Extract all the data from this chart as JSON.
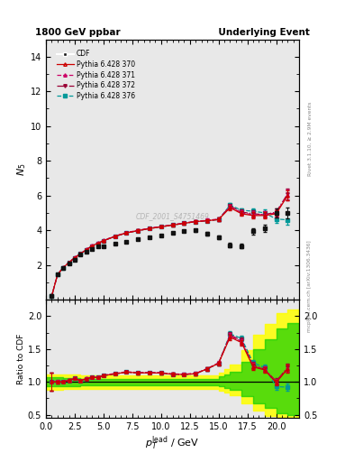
{
  "title_left": "1800 GeV ppbar",
  "title_right": "Underlying Event",
  "ylabel_main": "$N_5$",
  "ylabel_ratio": "Ratio to CDF",
  "xlabel": "$p_T^{\\rm lead}$ / GeV",
  "watermark": "CDF_2001_S4751469",
  "rivet_text": "Rivet 3.1.10, ≥ 2.9M events",
  "mcplots_text": "mcplots.cern.ch [arXiv:1306.3436]",
  "xlim": [
    0,
    22
  ],
  "ylim_main": [
    0,
    15
  ],
  "ylim_ratio": [
    0.45,
    2.25
  ],
  "yticks_main": [
    2,
    4,
    6,
    8,
    10,
    12,
    14
  ],
  "yticks_ratio": [
    0.5,
    1.0,
    1.5,
    2.0
  ],
  "cdf_x": [
    0.5,
    1.0,
    1.5,
    2.0,
    2.5,
    3.0,
    3.5,
    4.0,
    4.5,
    5.0,
    6.0,
    7.0,
    8.0,
    9.0,
    10.0,
    11.0,
    12.0,
    13.0,
    14.0,
    15.0,
    16.0,
    17.0,
    18.0,
    19.0,
    20.0,
    21.0
  ],
  "cdf_y": [
    0.22,
    1.45,
    1.85,
    2.1,
    2.3,
    2.6,
    2.75,
    2.9,
    3.05,
    3.1,
    3.25,
    3.35,
    3.5,
    3.6,
    3.7,
    3.85,
    3.95,
    4.0,
    3.8,
    3.6,
    3.15,
    3.1,
    3.95,
    4.1,
    5.0,
    5.0
  ],
  "cdf_yerr": [
    0.08,
    0.05,
    0.05,
    0.05,
    0.05,
    0.05,
    0.05,
    0.05,
    0.05,
    0.05,
    0.05,
    0.06,
    0.06,
    0.06,
    0.06,
    0.07,
    0.07,
    0.08,
    0.09,
    0.1,
    0.12,
    0.14,
    0.18,
    0.2,
    0.25,
    0.3
  ],
  "py370_x": [
    0.5,
    1.0,
    1.5,
    2.0,
    2.5,
    3.0,
    3.5,
    4.0,
    4.5,
    5.0,
    6.0,
    7.0,
    8.0,
    9.0,
    10.0,
    11.0,
    12.0,
    13.0,
    14.0,
    15.0,
    16.0,
    17.0,
    18.0,
    19.0,
    20.0,
    21.0
  ],
  "py370_y": [
    0.22,
    1.45,
    1.85,
    2.15,
    2.42,
    2.65,
    2.88,
    3.1,
    3.25,
    3.4,
    3.65,
    3.85,
    3.98,
    4.1,
    4.2,
    4.3,
    4.4,
    4.5,
    4.55,
    4.62,
    5.3,
    4.95,
    4.85,
    4.85,
    4.95,
    6.0
  ],
  "py370_yerr": [
    0.03,
    0.03,
    0.03,
    0.03,
    0.03,
    0.03,
    0.04,
    0.04,
    0.04,
    0.04,
    0.05,
    0.05,
    0.06,
    0.06,
    0.06,
    0.07,
    0.07,
    0.08,
    0.09,
    0.1,
    0.13,
    0.13,
    0.18,
    0.18,
    0.22,
    0.3
  ],
  "py371_x": [
    0.5,
    1.0,
    1.5,
    2.0,
    2.5,
    3.0,
    3.5,
    4.0,
    4.5,
    5.0,
    6.0,
    7.0,
    8.0,
    9.0,
    10.0,
    11.0,
    12.0,
    13.0,
    14.0,
    15.0,
    16.0,
    17.0,
    18.0,
    19.0,
    20.0,
    21.0
  ],
  "py371_y": [
    0.22,
    1.46,
    1.86,
    2.16,
    2.43,
    2.66,
    2.9,
    3.12,
    3.27,
    3.42,
    3.67,
    3.87,
    4.0,
    4.12,
    4.22,
    4.32,
    4.42,
    4.52,
    4.57,
    4.65,
    5.35,
    5.0,
    4.9,
    4.9,
    5.0,
    6.05
  ],
  "py371_yerr": [
    0.03,
    0.03,
    0.03,
    0.03,
    0.03,
    0.03,
    0.04,
    0.04,
    0.04,
    0.04,
    0.05,
    0.05,
    0.06,
    0.06,
    0.06,
    0.07,
    0.07,
    0.08,
    0.09,
    0.1,
    0.13,
    0.13,
    0.18,
    0.18,
    0.22,
    0.3
  ],
  "py372_x": [
    0.5,
    1.0,
    1.5,
    2.0,
    2.5,
    3.0,
    3.5,
    4.0,
    4.5,
    5.0,
    6.0,
    7.0,
    8.0,
    9.0,
    10.0,
    11.0,
    12.0,
    13.0,
    14.0,
    15.0,
    16.0,
    17.0,
    18.0,
    19.0,
    20.0,
    21.0
  ],
  "py372_y": [
    0.22,
    1.45,
    1.85,
    2.15,
    2.42,
    2.65,
    2.88,
    3.1,
    3.25,
    3.4,
    3.65,
    3.85,
    3.98,
    4.1,
    4.2,
    4.3,
    4.4,
    4.5,
    4.55,
    4.62,
    5.4,
    5.05,
    4.95,
    4.9,
    5.05,
    6.1
  ],
  "py372_yerr": [
    0.03,
    0.03,
    0.03,
    0.03,
    0.03,
    0.03,
    0.04,
    0.04,
    0.04,
    0.04,
    0.05,
    0.05,
    0.06,
    0.06,
    0.06,
    0.07,
    0.07,
    0.08,
    0.09,
    0.1,
    0.13,
    0.13,
    0.18,
    0.18,
    0.22,
    0.3
  ],
  "py376_x": [
    0.5,
    1.0,
    1.5,
    2.0,
    2.5,
    3.0,
    3.5,
    4.0,
    4.5,
    5.0,
    6.0,
    7.0,
    8.0,
    9.0,
    10.0,
    11.0,
    12.0,
    13.0,
    14.0,
    15.0,
    16.0,
    17.0,
    18.0,
    19.0,
    20.0,
    21.0
  ],
  "py376_y": [
    0.22,
    1.45,
    1.85,
    2.15,
    2.42,
    2.65,
    2.88,
    3.1,
    3.25,
    3.4,
    3.65,
    3.85,
    3.98,
    4.1,
    4.2,
    4.3,
    4.4,
    4.5,
    4.55,
    4.62,
    5.45,
    5.15,
    5.1,
    5.0,
    4.65,
    4.6
  ],
  "py376_yerr": [
    0.03,
    0.03,
    0.03,
    0.03,
    0.03,
    0.03,
    0.04,
    0.04,
    0.04,
    0.04,
    0.05,
    0.05,
    0.06,
    0.06,
    0.06,
    0.07,
    0.07,
    0.08,
    0.09,
    0.1,
    0.13,
    0.13,
    0.18,
    0.18,
    0.22,
    0.3
  ],
  "green_band_x": [
    0.0,
    1.5,
    3.0,
    5.0,
    7.0,
    9.0,
    11.0,
    13.0,
    15.0,
    15.5,
    16.0,
    17.0,
    18.0,
    19.0,
    20.0,
    21.0,
    22.0
  ],
  "green_band_lo": [
    0.93,
    0.94,
    0.95,
    0.95,
    0.95,
    0.95,
    0.95,
    0.95,
    0.93,
    0.91,
    0.88,
    0.78,
    0.68,
    0.6,
    0.52,
    0.5,
    0.5
  ],
  "green_band_hi": [
    1.07,
    1.06,
    1.05,
    1.05,
    1.05,
    1.05,
    1.05,
    1.05,
    1.08,
    1.12,
    1.16,
    1.3,
    1.5,
    1.65,
    1.82,
    1.9,
    1.9
  ],
  "yellow_band_x": [
    0.0,
    1.5,
    3.0,
    5.0,
    7.0,
    9.0,
    11.0,
    13.0,
    15.0,
    15.5,
    16.0,
    17.0,
    18.0,
    19.0,
    20.0,
    21.0,
    22.0
  ],
  "yellow_band_lo": [
    0.88,
    0.89,
    0.9,
    0.9,
    0.9,
    0.9,
    0.9,
    0.9,
    0.87,
    0.84,
    0.8,
    0.68,
    0.56,
    0.48,
    0.43,
    0.43,
    0.43
  ],
  "yellow_band_hi": [
    1.12,
    1.11,
    1.1,
    1.1,
    1.1,
    1.1,
    1.1,
    1.1,
    1.14,
    1.2,
    1.26,
    1.48,
    1.72,
    1.88,
    2.05,
    2.1,
    2.1
  ],
  "color_370": "#cc0000",
  "color_371": "#cc0066",
  "color_372": "#990033",
  "color_376": "#009999",
  "color_cdf": "#111111",
  "bg_color": "#e8e8e8"
}
